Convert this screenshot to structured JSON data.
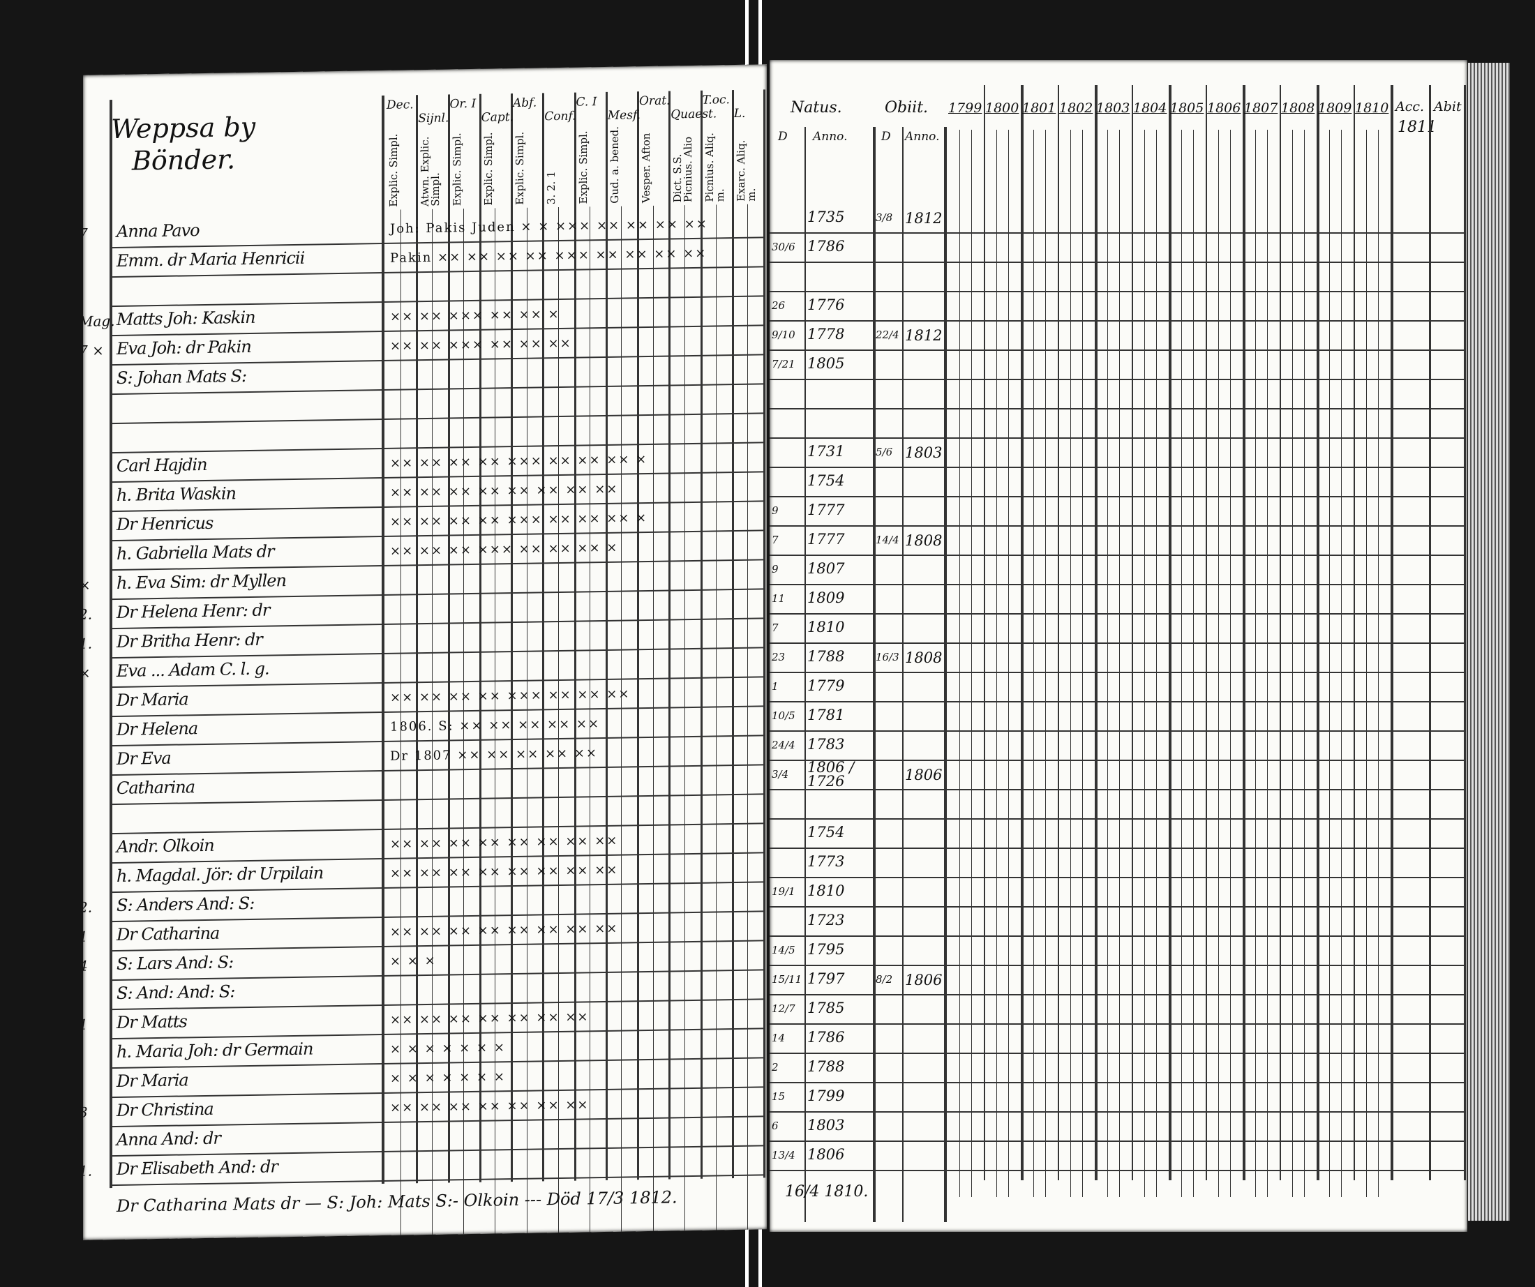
{
  "left_page": {
    "title_line1": "Weppsa by",
    "title_line2": "Bönder.",
    "column_groups": [
      {
        "head": "Dec.",
        "sub": "Explic. Simpl."
      },
      {
        "head": "Sijnl.",
        "sub": "Atwn. Explic. Simpl."
      },
      {
        "head": "Or. I",
        "sub": "Explic. Simpl."
      },
      {
        "head": "Capt.",
        "sub": "Explic. Simpl."
      },
      {
        "head": "Abf.",
        "sub": "Explic. Simpl."
      },
      {
        "head": "Conf.",
        "sub": "3. 2. 1"
      },
      {
        "head": "C. I",
        "sub": "Explic. Simpl."
      },
      {
        "head": "Mesf.",
        "sub": "Gud. a. bened."
      },
      {
        "head": "Orat.",
        "sub": "Vesper. Afton"
      },
      {
        "head": "Quaest.",
        "sub": "Dict. S.S. Picnius. Alio"
      },
      {
        "head": "T.oc.",
        "sub": "Picnius. Aliq. m."
      },
      {
        "head": "L.",
        "sub": "Exarc. Aliq. m."
      }
    ],
    "rows": [
      {
        "margin": "7",
        "name": "Anna Pavo",
        "marks": "Joh: Pakis Juden × × ××× ×× ×× ×× ××"
      },
      {
        "margin": "",
        "name": "Emm. dr Maria Henricii",
        "marks": "Pakin ×× ×× ×× ×× ××× ×× ×× ×× ××"
      },
      {
        "margin": "",
        "name": "",
        "marks": ""
      },
      {
        "margin": "Mag.",
        "name": "Matts Joh: Kaskin",
        "marks": "×× ×× ××× ×× ×× ×"
      },
      {
        "margin": "7 ×",
        "name": "Eva Joh: dr Pakin",
        "marks": "×× ×× ××× ×× ×× ××"
      },
      {
        "margin": "",
        "name": "S: Johan Mats S:",
        "marks": ""
      },
      {
        "margin": "",
        "name": "",
        "marks": ""
      },
      {
        "margin": "",
        "name": "",
        "marks": ""
      },
      {
        "margin": "",
        "name": "Carl Hajdin",
        "marks": "×× ×× ×× ×× ××× ×× ×× ×× ×"
      },
      {
        "margin": "",
        "name": "h. Brita Waskin",
        "marks": "×× ×× ×× ×× ×× ×× ×× ××"
      },
      {
        "margin": "",
        "name": "Dr Henricus",
        "marks": "×× ×× ×× ×× ××× ×× ×× ×× ×"
      },
      {
        "margin": "",
        "name": "h. Gabriella Mats dr",
        "marks": "×× ×× ×× ××× ×× ×× ×× ×"
      },
      {
        "margin": "×",
        "name": "h. Eva Sim: dr Myllen",
        "marks": ""
      },
      {
        "margin": "2.",
        "name": "Dr Helena Henr: dr",
        "marks": ""
      },
      {
        "margin": "1.",
        "name": "Dr Britha Henr: dr",
        "marks": ""
      },
      {
        "margin": "×",
        "name": "Eva ... Adam C. l. g.",
        "marks": ""
      },
      {
        "margin": "",
        "name": "Dr Maria",
        "marks": "×× ×× ×× ×× ××× ×× ×× ××"
      },
      {
        "margin": "",
        "name": "Dr Helena",
        "marks": "1806. S: ×× ×× ×× ×× ××"
      },
      {
        "margin": "",
        "name": "Dr Eva",
        "marks": "Dr 1807 ×× ×× ×× ×× ××"
      },
      {
        "margin": "",
        "name": "Catharina",
        "marks": ""
      },
      {
        "margin": "",
        "name": "",
        "marks": ""
      },
      {
        "margin": "",
        "name": "Andr. Olkoin",
        "marks": "×× ×× ×× ×× ×× ×× ×× ××"
      },
      {
        "margin": "",
        "name": "h. Magdal. Jör: dr Urpilain",
        "marks": "×× ×× ×× ×× ×× ×× ×× ××"
      },
      {
        "margin": "2.",
        "name": "S: Anders And: S:",
        "marks": ""
      },
      {
        "margin": "1",
        "name": "Dr Catharina",
        "marks": "×× ×× ×× ×× ×× ×× ×× ××"
      },
      {
        "margin": "4",
        "name": "S: Lars And: S:",
        "marks": "× × ×"
      },
      {
        "margin": "",
        "name": "S: And: And: S:",
        "marks": ""
      },
      {
        "margin": "1",
        "name": "Dr Matts",
        "marks": "×× ×× ×× ×× ×× ×× ××"
      },
      {
        "margin": "",
        "name": "h. Maria Joh: dr Germain",
        "marks": "× × × × × × ×"
      },
      {
        "margin": "",
        "name": "Dr Maria",
        "marks": "× × × × × × ×"
      },
      {
        "margin": "3",
        "name": "Dr Christina",
        "marks": "×× ×× ×× ×× ×× ×× ××"
      },
      {
        "margin": "",
        "name": "Anna And: dr",
        "marks": ""
      },
      {
        "margin": "1.",
        "name": "Dr Elisabeth And: dr",
        "marks": ""
      }
    ],
    "footer": "Dr Catharina Mats dr  — S: Joh: Mats S:- Olkoin --- Död 17/3 1812."
  },
  "right_page": {
    "natus_label": "Natus.",
    "obiit_label": "Obiit.",
    "d_label": "D",
    "anno_label": "Anno.",
    "years": [
      "1799",
      "1800",
      "1801",
      "1802",
      "1803",
      "1804",
      "1805",
      "1806",
      "1807",
      "1808",
      "1809",
      "1810"
    ],
    "acc_label": "Acc.",
    "acc_year": "1811",
    "abit_label": "Abit",
    "rows": [
      {
        "d": "",
        "year": "1735",
        "od": "3/8",
        "oyear": "1812"
      },
      {
        "d": "30/6",
        "year": "1786",
        "od": "",
        "oyear": ""
      },
      {
        "d": "",
        "year": "",
        "od": "",
        "oyear": ""
      },
      {
        "d": "26",
        "year": "1776",
        "od": "",
        "oyear": ""
      },
      {
        "d": "9/10",
        "year": "1778",
        "od": "22/4",
        "oyear": "1812"
      },
      {
        "d": "7/21",
        "year": "1805",
        "od": "",
        "oyear": ""
      },
      {
        "d": "",
        "year": "",
        "od": "",
        "oyear": ""
      },
      {
        "d": "",
        "year": "",
        "od": "",
        "oyear": ""
      },
      {
        "d": "",
        "year": "1731",
        "od": "5/6",
        "oyear": "1803"
      },
      {
        "d": "",
        "year": "1754",
        "od": "",
        "oyear": ""
      },
      {
        "d": "9",
        "year": "1777",
        "od": "",
        "oyear": ""
      },
      {
        "d": "7",
        "year": "1777",
        "od": "14/4",
        "oyear": "1808"
      },
      {
        "d": "9",
        "year": "1807",
        "od": "",
        "oyear": ""
      },
      {
        "d": "11",
        "year": "1809",
        "od": "",
        "oyear": ""
      },
      {
        "d": "7",
        "year": "1810",
        "od": "",
        "oyear": ""
      },
      {
        "d": "23",
        "year": "1788",
        "od": "16/3",
        "oyear": "1808"
      },
      {
        "d": "1",
        "year": "1779",
        "od": "",
        "oyear": ""
      },
      {
        "d": "10/5",
        "year": "1781",
        "od": "",
        "oyear": ""
      },
      {
        "d": "24/4",
        "year": "1783",
        "od": "",
        "oyear": ""
      },
      {
        "d": "3/4",
        "year": "1806 / 1726",
        "od": "",
        "oyear": "1806"
      },
      {
        "d": "",
        "year": "",
        "od": "",
        "oyear": ""
      },
      {
        "d": "",
        "year": "1754",
        "od": "",
        "oyear": ""
      },
      {
        "d": "",
        "year": "1773",
        "od": "",
        "oyear": ""
      },
      {
        "d": "19/1",
        "year": "1810",
        "od": "",
        "oyear": ""
      },
      {
        "d": "",
        "year": "1723",
        "od": "",
        "oyear": ""
      },
      {
        "d": "14/5",
        "year": "1795",
        "od": "",
        "oyear": ""
      },
      {
        "d": "15/11",
        "year": "1797",
        "od": "8/2",
        "oyear": "1806"
      },
      {
        "d": "12/7",
        "year": "1785",
        "od": "",
        "oyear": ""
      },
      {
        "d": "14",
        "year": "1786",
        "od": "",
        "oyear": ""
      },
      {
        "d": "2",
        "year": "1788",
        "od": "",
        "oyear": ""
      },
      {
        "d": "15",
        "year": "1799",
        "od": "",
        "oyear": ""
      },
      {
        "d": "6",
        "year": "1803",
        "od": "",
        "oyear": ""
      },
      {
        "d": "13/4",
        "year": "1806",
        "od": "",
        "oyear": ""
      }
    ],
    "footer": "16/4 1810."
  }
}
